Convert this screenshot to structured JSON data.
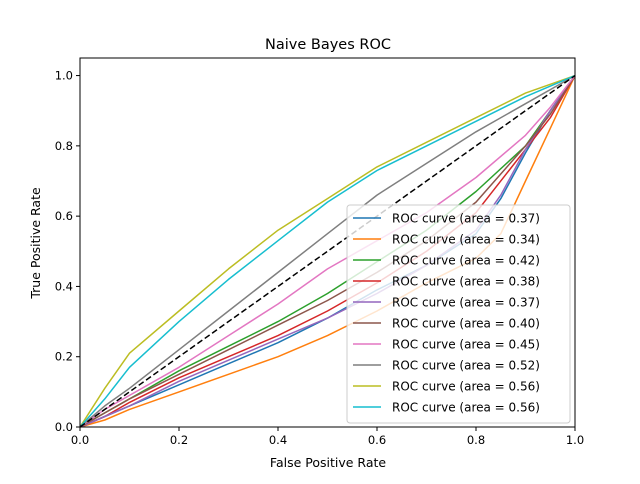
{
  "chart_data": {
    "type": "line",
    "title": "Naive Bayes ROC",
    "xlabel": "False Positive Rate",
    "ylabel": "True Positive Rate",
    "xlim": [
      0,
      1
    ],
    "ylim": [
      0,
      1.05
    ],
    "xticks": [
      "0.0",
      "0.2",
      "0.4",
      "0.6",
      "0.8",
      "1.0"
    ],
    "yticks": [
      "0.0",
      "0.2",
      "0.4",
      "0.6",
      "0.8",
      "1.0"
    ],
    "grid": false,
    "legend_position": "lower-right",
    "diagonal": {
      "x": [
        0,
        1
      ],
      "y": [
        0,
        1
      ],
      "color": "#000000",
      "style": "dashed"
    },
    "series": [
      {
        "name": "ROC curve (area = 0.37)",
        "color": "#1f77b4",
        "x": [
          0,
          0.05,
          0.1,
          0.2,
          0.3,
          0.4,
          0.5,
          0.6,
          0.7,
          0.8,
          0.85,
          0.9,
          0.95,
          1.0
        ],
        "y": [
          0,
          0.03,
          0.06,
          0.12,
          0.18,
          0.24,
          0.31,
          0.39,
          0.46,
          0.55,
          0.65,
          0.78,
          0.9,
          1.0
        ]
      },
      {
        "name": "ROC curve (area = 0.34)",
        "color": "#ff7f0e",
        "x": [
          0,
          0.05,
          0.1,
          0.2,
          0.3,
          0.4,
          0.5,
          0.6,
          0.7,
          0.8,
          0.85,
          0.9,
          0.95,
          1.0
        ],
        "y": [
          0,
          0.02,
          0.05,
          0.1,
          0.15,
          0.2,
          0.26,
          0.33,
          0.41,
          0.48,
          0.55,
          0.7,
          0.85,
          1.0
        ]
      },
      {
        "name": "ROC curve (area = 0.42)",
        "color": "#2ca02c",
        "x": [
          0,
          0.05,
          0.1,
          0.2,
          0.3,
          0.4,
          0.5,
          0.6,
          0.7,
          0.8,
          0.9,
          0.95,
          1.0
        ],
        "y": [
          0,
          0.04,
          0.08,
          0.16,
          0.23,
          0.3,
          0.38,
          0.47,
          0.56,
          0.67,
          0.8,
          0.9,
          1.0
        ]
      },
      {
        "name": "ROC curve (area = 0.38)",
        "color": "#d62728",
        "x": [
          0,
          0.05,
          0.1,
          0.2,
          0.3,
          0.4,
          0.5,
          0.6,
          0.7,
          0.8,
          0.9,
          0.95,
          1.0
        ],
        "y": [
          0,
          0.03,
          0.07,
          0.14,
          0.2,
          0.26,
          0.33,
          0.41,
          0.5,
          0.61,
          0.79,
          0.88,
          1.0
        ]
      },
      {
        "name": "ROC curve (area = 0.37)",
        "color": "#9467bd",
        "x": [
          0,
          0.05,
          0.1,
          0.2,
          0.3,
          0.4,
          0.5,
          0.6,
          0.7,
          0.8,
          0.85,
          0.9,
          0.95,
          1.0
        ],
        "y": [
          0,
          0.03,
          0.06,
          0.13,
          0.19,
          0.25,
          0.31,
          0.38,
          0.46,
          0.56,
          0.66,
          0.79,
          0.9,
          1.0
        ]
      },
      {
        "name": "ROC curve (area = 0.40)",
        "color": "#8c564b",
        "x": [
          0,
          0.05,
          0.1,
          0.2,
          0.3,
          0.4,
          0.5,
          0.6,
          0.7,
          0.8,
          0.9,
          0.95,
          1.0
        ],
        "y": [
          0,
          0.04,
          0.08,
          0.15,
          0.22,
          0.29,
          0.36,
          0.44,
          0.53,
          0.64,
          0.8,
          0.89,
          1.0
        ]
      },
      {
        "name": "ROC curve (area = 0.45)",
        "color": "#e377c2",
        "x": [
          0,
          0.05,
          0.1,
          0.2,
          0.3,
          0.4,
          0.5,
          0.6,
          0.7,
          0.8,
          0.9,
          0.95,
          1.0
        ],
        "y": [
          0,
          0.05,
          0.09,
          0.17,
          0.26,
          0.35,
          0.45,
          0.53,
          0.61,
          0.71,
          0.83,
          0.91,
          1.0
        ]
      },
      {
        "name": "ROC curve (area = 0.52)",
        "color": "#7f7f7f",
        "x": [
          0,
          0.05,
          0.1,
          0.2,
          0.3,
          0.4,
          0.5,
          0.6,
          0.7,
          0.8,
          0.9,
          1.0
        ],
        "y": [
          0,
          0.06,
          0.11,
          0.22,
          0.33,
          0.44,
          0.55,
          0.66,
          0.75,
          0.84,
          0.92,
          1.0
        ]
      },
      {
        "name": "ROC curve (area = 0.56)",
        "color": "#bcbd22",
        "x": [
          0,
          0.05,
          0.1,
          0.2,
          0.3,
          0.4,
          0.5,
          0.6,
          0.7,
          0.8,
          0.9,
          1.0
        ],
        "y": [
          0,
          0.11,
          0.21,
          0.33,
          0.45,
          0.56,
          0.65,
          0.74,
          0.81,
          0.88,
          0.95,
          1.0
        ]
      },
      {
        "name": "ROC curve (area = 0.56)",
        "color": "#17becf",
        "x": [
          0,
          0.05,
          0.1,
          0.2,
          0.3,
          0.4,
          0.5,
          0.6,
          0.7,
          0.8,
          0.9,
          1.0
        ],
        "y": [
          0,
          0.08,
          0.17,
          0.3,
          0.42,
          0.53,
          0.64,
          0.73,
          0.8,
          0.87,
          0.94,
          1.0
        ]
      }
    ]
  }
}
